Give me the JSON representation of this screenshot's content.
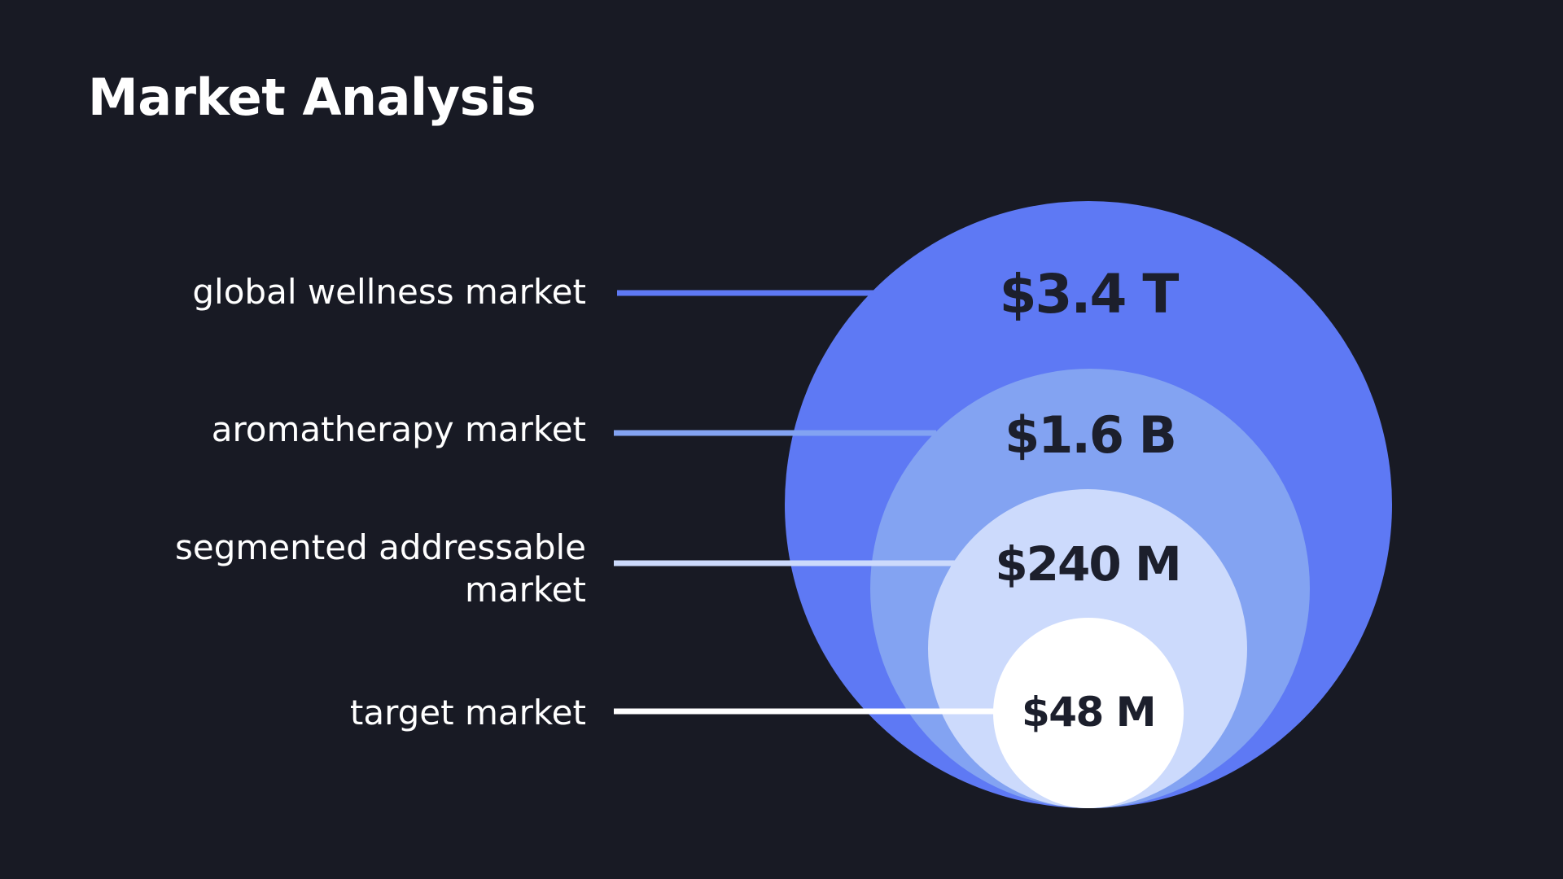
{
  "title": "Market Analysis",
  "markets": [
    {
      "label": "global wellness market",
      "value": "$3.4 T",
      "color": "#5e79f4",
      "line_color": "#5e79f4"
    },
    {
      "label": "aromatherapy market",
      "value": "$1.6 B",
      "color": "#83a3f2",
      "line_color": "#83a3f2"
    },
    {
      "label_lines": [
        "segmented addressable",
        "market"
      ],
      "value": "$240 M",
      "color": "#ccdafc",
      "line_color": "#ccdafc"
    },
    {
      "label": "target market",
      "value": "$48 M",
      "color": "#ffffff",
      "line_color": "#ffffff"
    }
  ],
  "value_text_color": "#1c1f2c"
}
